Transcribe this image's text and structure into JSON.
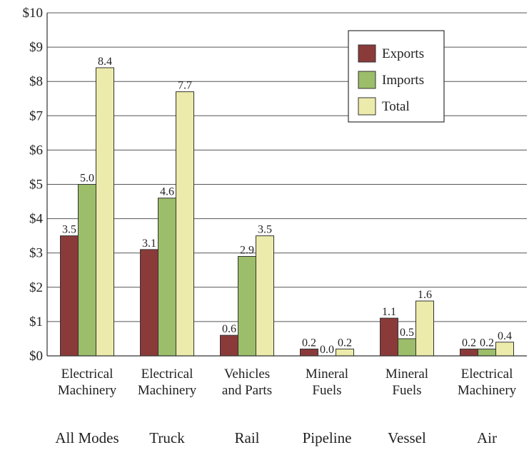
{
  "chart_data": {
    "type": "bar",
    "categories": [
      {
        "line1": "Electrical",
        "line2": "Machinery",
        "mode": "All Modes"
      },
      {
        "line1": "Electrical",
        "line2": "Machinery",
        "mode": "Truck"
      },
      {
        "line1": "Vehicles",
        "line2": "and Parts",
        "mode": "Rail"
      },
      {
        "line1": "Mineral",
        "line2": "Fuels",
        "mode": "Pipeline"
      },
      {
        "line1": "Mineral",
        "line2": "Fuels",
        "mode": "Vessel"
      },
      {
        "line1": "Electrical",
        "line2": "Machinery",
        "mode": "Air"
      }
    ],
    "series": [
      {
        "name": "Exports",
        "color": "#8b3a3a",
        "values": [
          3.5,
          3.1,
          0.6,
          0.2,
          1.1,
          0.2
        ],
        "labels": [
          "3.5",
          "3.1",
          "0.6",
          "0.2",
          "1.1",
          "0.2"
        ]
      },
      {
        "name": "Imports",
        "color": "#9cbd6a",
        "values": [
          5.0,
          4.6,
          2.9,
          0.0,
          0.5,
          0.2
        ],
        "labels": [
          "5.0",
          "4.6",
          "2.9",
          "0.0",
          "0.5",
          "0.2"
        ]
      },
      {
        "name": "Total",
        "color": "#ecebab",
        "values": [
          8.4,
          7.7,
          3.5,
          0.2,
          1.6,
          0.4
        ],
        "labels": [
          "8.4",
          "7.7",
          "3.5",
          "0.2",
          "1.6",
          "0.4"
        ]
      }
    ],
    "ylim": [
      0,
      10
    ],
    "yticks": [
      "$0",
      "$1",
      "$2",
      "$3",
      "$4",
      "$5",
      "$6",
      "$7",
      "$8",
      "$9",
      "$10"
    ],
    "grid": true,
    "legend": "top-right"
  }
}
